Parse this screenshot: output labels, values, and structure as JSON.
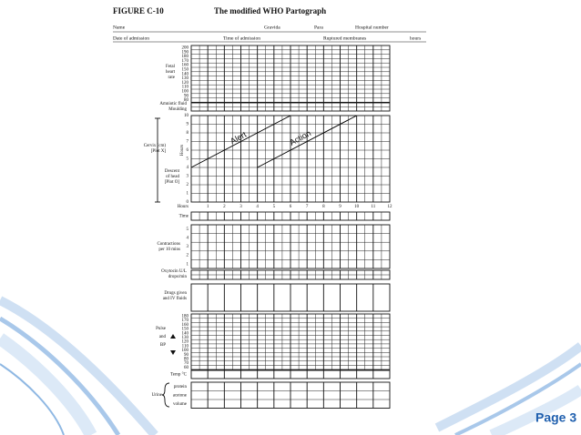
{
  "header": {
    "figure": "FIGURE C-10",
    "title": "The modified WHO Partograph"
  },
  "patient_fields": {
    "name": "Name",
    "gravida": "Gravida",
    "para": "Para",
    "hospital_number": "Hospital number",
    "date_of_admission": "Date of admission",
    "time_of_admission": "Time of admission",
    "ruptured_membranes": "Ruptured membranes",
    "hours": "hours"
  },
  "fetal_heart_rate": {
    "label_1": "Fetal",
    "label_2": "heart",
    "label_3": "rate",
    "scale": [
      200,
      190,
      180,
      170,
      160,
      150,
      140,
      130,
      120,
      110,
      100,
      90,
      80
    ]
  },
  "amniotic": {
    "label_1": "Amniotic fluid",
    "label_2": "Moulding"
  },
  "cervix": {
    "label_1": "Cervix (cm)",
    "label_2": "[Plot X]",
    "descent_1": "Descent",
    "descent_2": "of head",
    "descent_3": "[Plot O]",
    "axis_label": "Hours",
    "scale": [
      10,
      9,
      8,
      7,
      6,
      5,
      4,
      3,
      2,
      1,
      0
    ],
    "alert": "Alert",
    "action": "Action"
  },
  "hours": {
    "label": "Hours",
    "values": [
      1,
      2,
      3,
      4,
      5,
      6,
      7,
      8,
      9,
      10,
      11,
      12
    ]
  },
  "time": {
    "label": "Time"
  },
  "contractions": {
    "label_1": "Contractions",
    "label_2": "per 10 mins",
    "scale": [
      5,
      4,
      3,
      2,
      1
    ]
  },
  "oxytocin": {
    "label_1": "Oxytocin U/L",
    "label_2": "drops/min"
  },
  "drugs": {
    "label_1": "Drugs given",
    "label_2": "and IV fluids"
  },
  "pulse_bp": {
    "pulse": "Pulse",
    "and": "and",
    "bp": "BP",
    "scale": [
      180,
      170,
      160,
      150,
      140,
      130,
      120,
      110,
      100,
      90,
      80,
      70,
      60
    ]
  },
  "temperature": {
    "label": "Temp °C"
  },
  "urine": {
    "label": "Urine",
    "rows": [
      "protein",
      "acetone",
      "volume"
    ]
  },
  "footer": {
    "page": "Page 3"
  }
}
